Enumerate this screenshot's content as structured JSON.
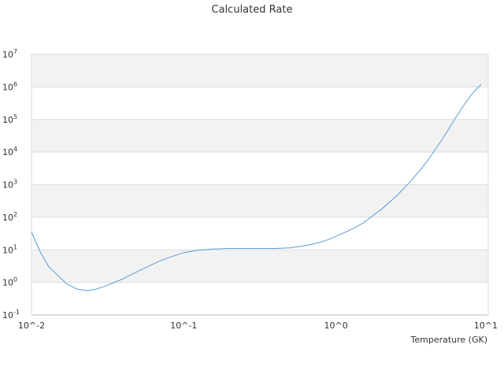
{
  "chart_data": {
    "type": "line",
    "title": "Calculated Rate",
    "xlabel": "Temperature (GK)",
    "ylabel": "",
    "x_scale": "log",
    "y_scale": "log",
    "xlim": [
      0.01,
      10
    ],
    "ylim": [
      0.1,
      10000000
    ],
    "grid": true,
    "legend": "none",
    "x_tick_labels": [
      "10^-2",
      "10^-1",
      "10^0",
      "10^1"
    ],
    "y_tick_labels": [
      "10^-1",
      "10^0",
      "10^1",
      "10^2",
      "10^3",
      "10^4",
      "10^5",
      "10^6",
      "10^7"
    ],
    "colors": {
      "line": "#5b9bd5",
      "band": "#f2f2f2",
      "grid": "#dddddd"
    },
    "series": [
      {
        "x": [
          0.01,
          0.0115,
          0.013,
          0.015,
          0.017,
          0.02,
          0.023,
          0.026,
          0.03,
          0.035,
          0.04,
          0.05,
          0.06,
          0.07,
          0.08,
          0.1,
          0.12,
          0.15,
          0.2,
          0.25,
          0.3,
          0.4,
          0.5,
          0.6,
          0.7,
          0.8,
          0.9,
          1.0,
          1.2,
          1.5,
          2.0,
          2.5,
          3.0,
          3.5,
          4.0,
          5.0,
          6.0,
          7.0,
          8.0,
          9.0
        ],
        "y": [
          35,
          8,
          3,
          1.6,
          0.9,
          0.62,
          0.56,
          0.6,
          0.75,
          1.0,
          1.3,
          2.2,
          3.3,
          4.6,
          5.8,
          8.2,
          9.5,
          10.5,
          11.0,
          11.0,
          11.0,
          11.0,
          11.5,
          13,
          15,
          17.5,
          21,
          26,
          38,
          65,
          180,
          450,
          1100,
          2500,
          5500,
          25000,
          100000,
          300000,
          700000,
          1200000
        ]
      }
    ]
  }
}
